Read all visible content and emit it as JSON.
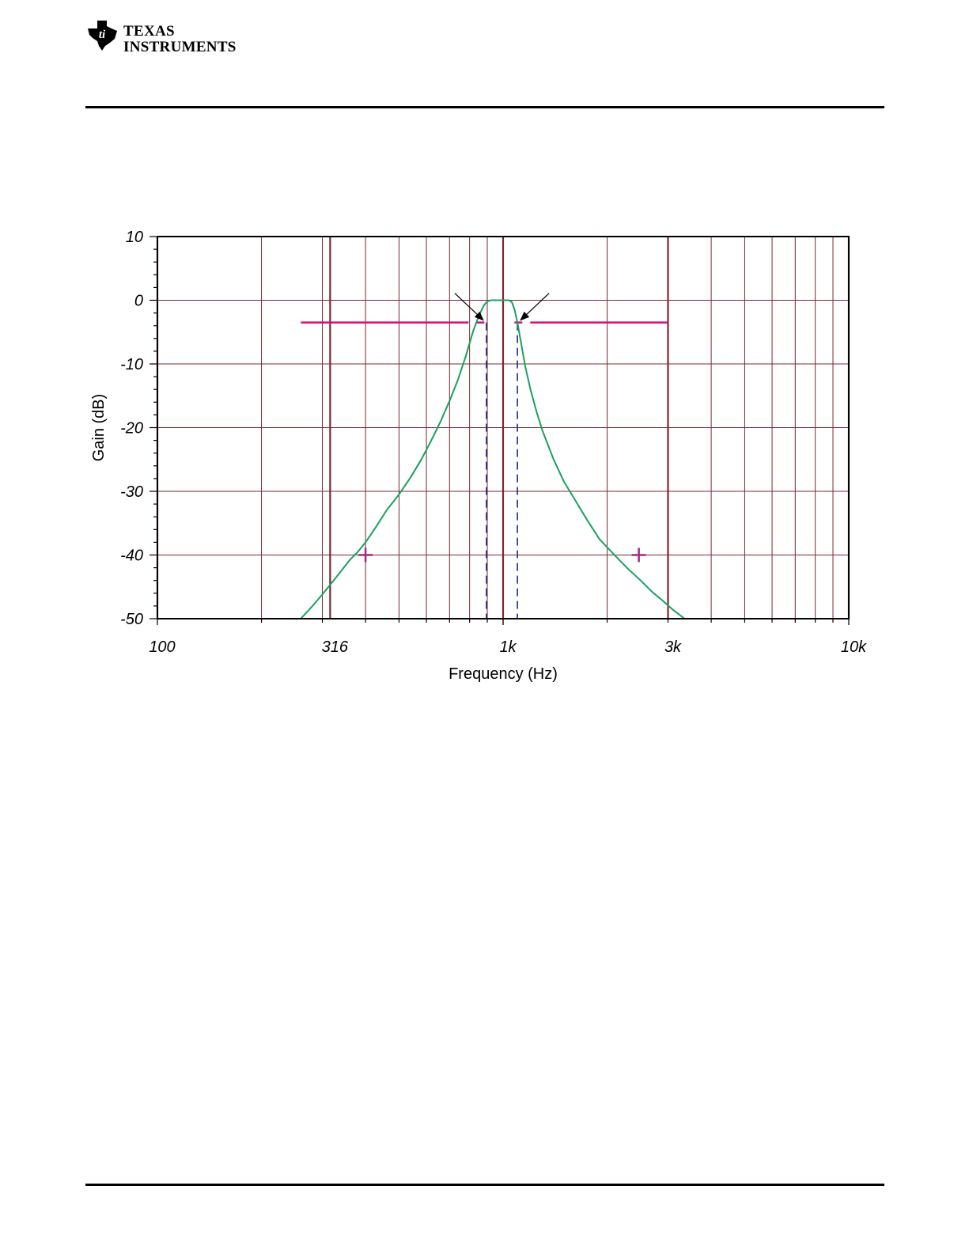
{
  "header": {
    "brand_line1": "Texas",
    "brand_line2": "Instruments"
  },
  "chart_data": {
    "type": "line",
    "title": "",
    "xlabel": "Frequency (Hz)",
    "ylabel": "Gain (dB)",
    "x_scale": "log",
    "xlim": [
      100,
      10000
    ],
    "ylim": [
      -50,
      10
    ],
    "x_ticks": [
      {
        "value": 100,
        "label": "100"
      },
      {
        "value": 316,
        "label": "316"
      },
      {
        "value": 1000,
        "label": "1k"
      },
      {
        "value": 3000,
        "label": "3k"
      },
      {
        "value": 10000,
        "label": "10k"
      }
    ],
    "y_ticks": [
      {
        "value": 10,
        "label": "10"
      },
      {
        "value": 0,
        "label": "0"
      },
      {
        "value": -10,
        "label": "-10"
      },
      {
        "value": -20,
        "label": "-20"
      },
      {
        "value": -30,
        "label": "-30"
      },
      {
        "value": -40,
        "label": "-40"
      },
      {
        "value": -50,
        "label": "-50"
      }
    ],
    "grid": true,
    "colors": {
      "curve": "#1aa060",
      "grid": "#7a2830",
      "spec_line": "#d0107a",
      "marker": "#a02880",
      "cutoff": "#1a2a8a"
    },
    "series": [
      {
        "x": [
          260,
          280,
          300,
          330,
          360,
          380,
          400,
          430,
          460,
          500,
          540,
          580,
          620,
          660,
          700,
          740,
          780,
          820,
          850,
          880,
          900,
          920,
          940,
          960,
          980,
          1000,
          1020,
          1040,
          1060,
          1080,
          1100,
          1130,
          1160,
          1200,
          1250,
          1300,
          1400,
          1500,
          1600,
          1750,
          1900,
          2100,
          2300,
          2500,
          2700,
          2900,
          3100,
          3350
        ],
        "y": [
          -50,
          -48.1,
          -46.2,
          -43.4,
          -40.8,
          -39.5,
          -38,
          -35.5,
          -33,
          -30.5,
          -27.8,
          -25,
          -22,
          -19,
          -15.8,
          -12.5,
          -8.8,
          -4.8,
          -2.5,
          -0.8,
          -0.2,
          0,
          0,
          0,
          0,
          0,
          0,
          0,
          -0.3,
          -1.5,
          -3.5,
          -7,
          -10.5,
          -14,
          -17.5,
          -20.5,
          -25,
          -28.5,
          -31,
          -34.5,
          -37.5,
          -40,
          -42.2,
          -44,
          -45.8,
          -47.2,
          -48.6,
          -50
        ]
      }
    ],
    "spec_line": {
      "y": -3.5,
      "x_from": 260,
      "x_to": 3000
    },
    "cutoff_lines": [
      {
        "x": 895,
        "y": -3.5
      },
      {
        "x": 1100,
        "y": -3.5
      }
    ],
    "markers": [
      {
        "x": 400,
        "y": -40
      },
      {
        "x": 2470,
        "y": -40
      }
    ],
    "arrows": [
      {
        "to_x": 895,
        "to_y": -3.5
      },
      {
        "to_x": 1100,
        "to_y": -3.5
      }
    ]
  }
}
